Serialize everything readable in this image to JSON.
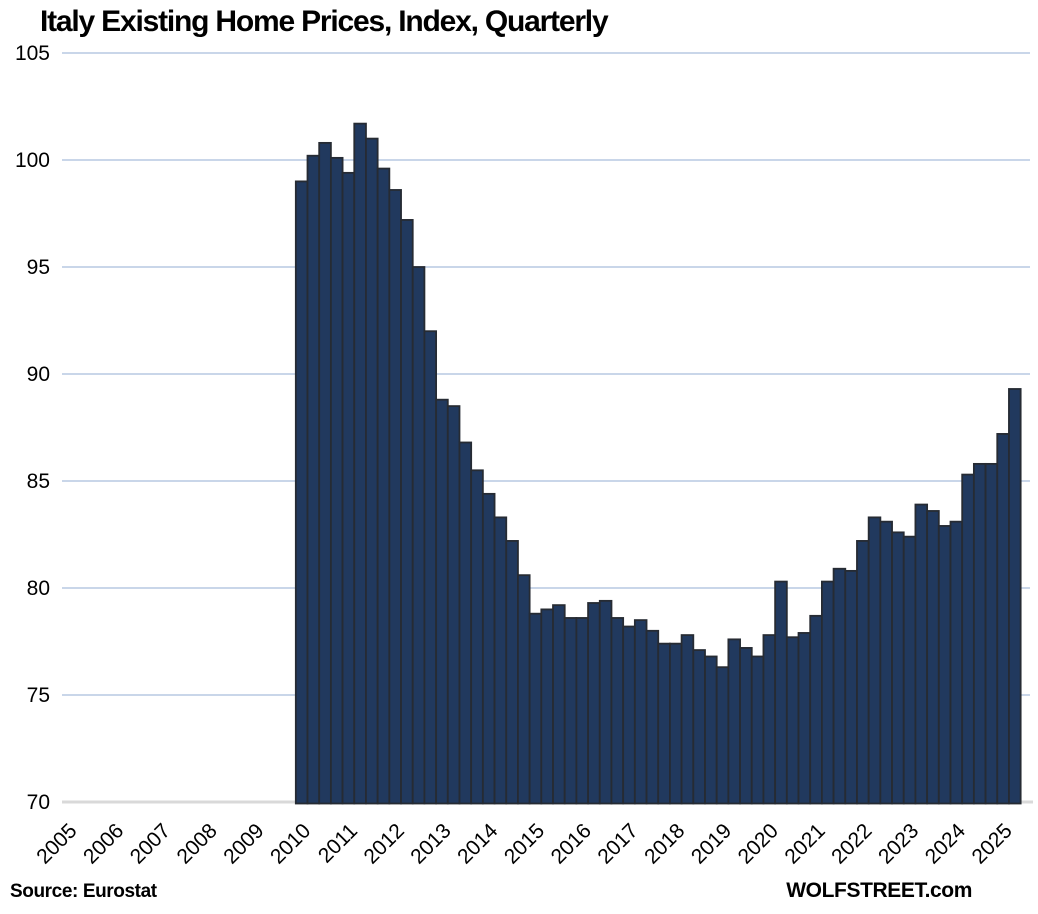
{
  "title": "Italy Existing Home Prices, Index, Quarterly",
  "footer": {
    "source": "Source: Eurostat",
    "branding": "WOLFSTREET.com"
  },
  "chart_data": {
    "type": "bar",
    "title": "Italy Existing Home Prices, Index, Quarterly",
    "series_name": "Italy existing home price index",
    "x_start": 2010.0,
    "x_step": 0.25,
    "start_quarter": "2010 Q1",
    "end_quarter": "2025 Q2",
    "values": [
      99.0,
      100.2,
      100.8,
      100.1,
      99.4,
      101.7,
      101.0,
      99.6,
      98.6,
      97.2,
      95.0,
      92.0,
      88.8,
      88.5,
      86.8,
      85.5,
      84.4,
      83.3,
      82.2,
      80.6,
      78.8,
      79.0,
      79.2,
      78.6,
      78.6,
      79.3,
      79.4,
      78.6,
      78.2,
      78.5,
      78.0,
      77.4,
      77.4,
      77.8,
      77.1,
      76.8,
      76.3,
      77.6,
      77.2,
      76.8,
      77.8,
      80.3,
      77.7,
      77.9,
      78.7,
      80.3,
      80.9,
      80.8,
      82.2,
      83.3,
      83.1,
      82.6,
      82.4,
      83.9,
      83.6,
      82.9,
      83.1,
      85.3,
      85.8,
      85.8,
      87.2,
      89.3
    ],
    "x_axis": {
      "labels": [
        "2005",
        "2006",
        "2007",
        "2008",
        "2009",
        "2010",
        "2011",
        "2012",
        "2013",
        "2014",
        "2015",
        "2016",
        "2017",
        "2018",
        "2019",
        "2020",
        "2021",
        "2022",
        "2023",
        "2024",
        "2025"
      ],
      "range": [
        2005.0,
        2025.7
      ],
      "label_rotation_deg": -45
    },
    "y_axis": {
      "ticks": [
        70,
        75,
        80,
        85,
        90,
        95,
        100,
        105
      ],
      "range": [
        70,
        105
      ]
    },
    "grid": true,
    "legend": false,
    "colors": {
      "bar_fill": "#21395e",
      "bar_stroke": "#262b33",
      "gridline": "#b7c8e2",
      "axis_line": "#d9d9d9",
      "text": "#000000"
    }
  }
}
